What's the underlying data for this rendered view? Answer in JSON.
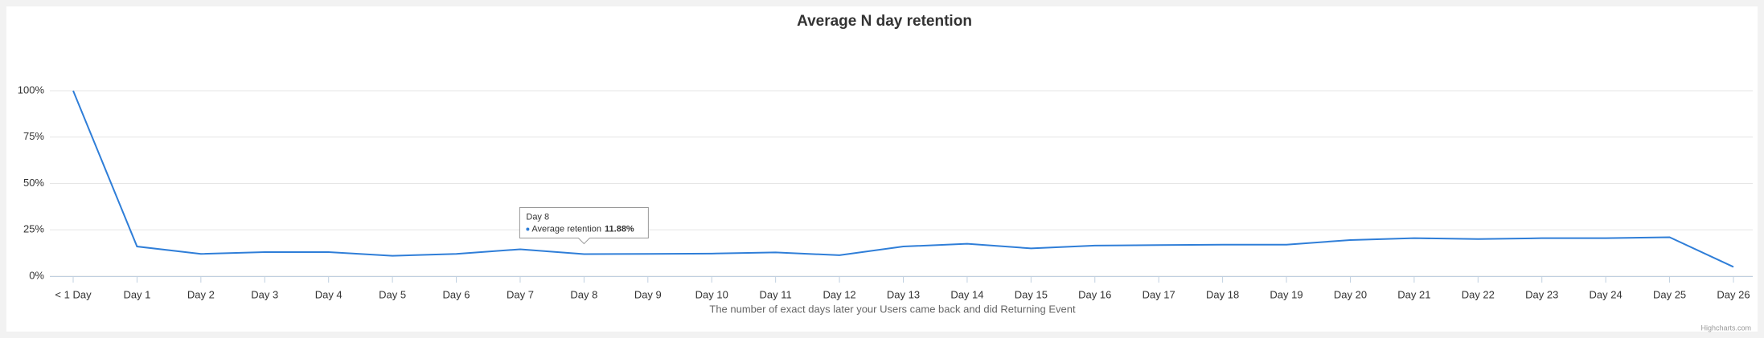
{
  "chart_data": {
    "type": "line",
    "title": "Average N day retention",
    "x_label": "The number of exact days later your Users came back and did Returning Event",
    "credit": "Highcharts.com",
    "categories": [
      "< 1 Day",
      "Day 1",
      "Day 2",
      "Day 3",
      "Day 4",
      "Day 5",
      "Day 6",
      "Day 7",
      "Day 8",
      "Day 9",
      "Day 10",
      "Day 11",
      "Day 12",
      "Day 13",
      "Day 14",
      "Day 15",
      "Day 16",
      "Day 17",
      "Day 18",
      "Day 19",
      "Day 20",
      "Day 21",
      "Day 22",
      "Day 23",
      "Day 24",
      "Day 25",
      "Day 26"
    ],
    "series": [
      {
        "name": "Average retention",
        "color": "#2f7ed8",
        "values": [
          100,
          16,
          12,
          13,
          13,
          11,
          12,
          14.5,
          11.88,
          12,
          12.2,
          12.8,
          11.3,
          16,
          17.5,
          15,
          16.5,
          16.8,
          17,
          17,
          19.5,
          20.5,
          20,
          20.5,
          20.5,
          21,
          5
        ],
        "value_labels": [
          null,
          null,
          null,
          null,
          null,
          null,
          null,
          null,
          "11.88%",
          null,
          null,
          null,
          null,
          null,
          null,
          null,
          null,
          null,
          null,
          null,
          null,
          null,
          null,
          null,
          null,
          null,
          null
        ]
      }
    ],
    "ylim": [
      0,
      100
    ],
    "yticks": [
      {
        "value": 0,
        "label": "0%"
      },
      {
        "value": 25,
        "label": "25%"
      },
      {
        "value": 50,
        "label": "50%"
      },
      {
        "value": 75,
        "label": "75%"
      },
      {
        "value": 100,
        "label": "100%"
      }
    ],
    "grid": true
  }
}
